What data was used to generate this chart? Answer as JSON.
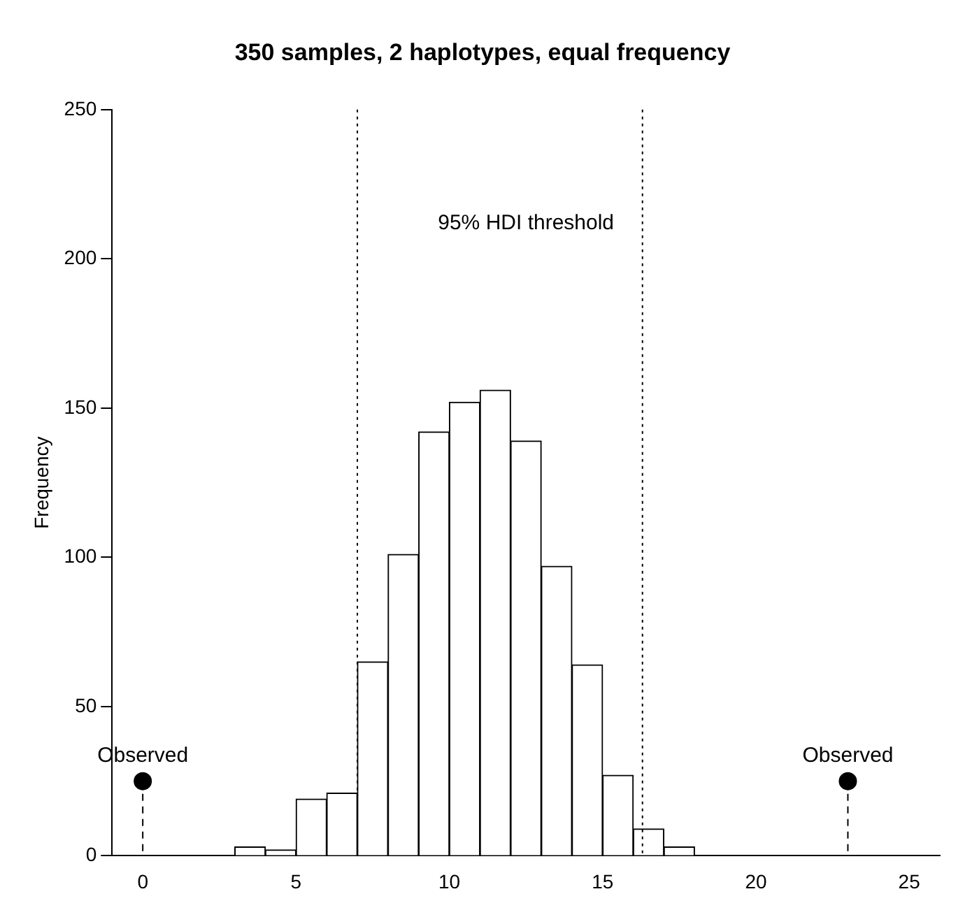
{
  "chart_data": {
    "type": "histogram",
    "title": "350 samples, 2 haplotypes, equal frequency",
    "ylabel": "Frequency",
    "bins": [
      3,
      4,
      5,
      6,
      7,
      8,
      9,
      10,
      11,
      12,
      13,
      14,
      15,
      16,
      17,
      18
    ],
    "values": [
      3,
      2,
      19,
      21,
      65,
      101,
      142,
      152,
      156,
      139,
      97,
      64,
      27,
      9,
      3
    ],
    "color": "#ffffff",
    "series": [
      {
        "type": "lollipop",
        "x": [
          0,
          23
        ],
        "values": [
          25,
          25
        ],
        "color": "#000000",
        "marker": "circle",
        "line_style": "dashed"
      }
    ],
    "xlim": [
      -1,
      26
    ],
    "xticks": [
      0,
      5,
      10,
      15,
      20,
      25
    ],
    "ylim": [
      0,
      250
    ],
    "yticks": [
      0,
      50,
      100,
      150,
      200,
      250
    ],
    "ref_lines": [
      {
        "axis": "x",
        "value": 7,
        "line_style": "dotted"
      },
      {
        "axis": "x",
        "value": 16.3,
        "line_style": "dotted"
      }
    ],
    "annotations": [
      "95% HDI threshold",
      {
        "text": "Observed",
        "x": 0,
        "y": 25
      },
      {
        "text": "Observed",
        "x": 23,
        "y": 25
      }
    ],
    "grid": false,
    "legend": false
  }
}
